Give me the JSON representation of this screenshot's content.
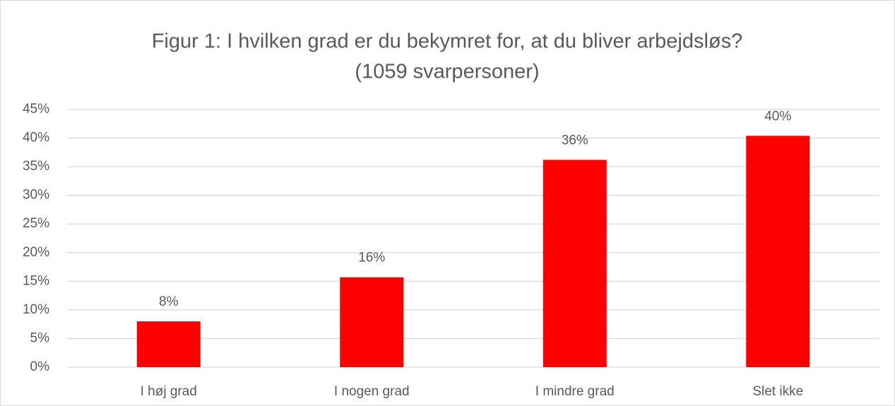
{
  "chart_data": {
    "type": "bar",
    "title": [
      "Figur 1: I hvilken grad er du bekymret for, at du bliver arbejdsløs?",
      "(1059 svarpersoner)"
    ],
    "categories": [
      "I høj grad",
      "I nogen grad",
      "I mindre grad",
      "Slet ikke"
    ],
    "values": [
      8,
      15.7,
      36.2,
      40.4
    ],
    "value_labels": [
      "8%",
      "16%",
      "36%",
      "40%"
    ],
    "color": "#ff0000",
    "ylim": [
      0,
      45
    ],
    "yticks": [
      {
        "value": 0,
        "label": "0%"
      },
      {
        "value": 5,
        "label": "5%"
      },
      {
        "value": 10,
        "label": "10%"
      },
      {
        "value": 15,
        "label": "15%"
      },
      {
        "value": 20,
        "label": "20%"
      },
      {
        "value": 25,
        "label": "25%"
      },
      {
        "value": 30,
        "label": "30%"
      },
      {
        "value": 35,
        "label": "35%"
      },
      {
        "value": 40,
        "label": "40%"
      },
      {
        "value": 45,
        "label": "45%"
      }
    ],
    "grid": true
  }
}
